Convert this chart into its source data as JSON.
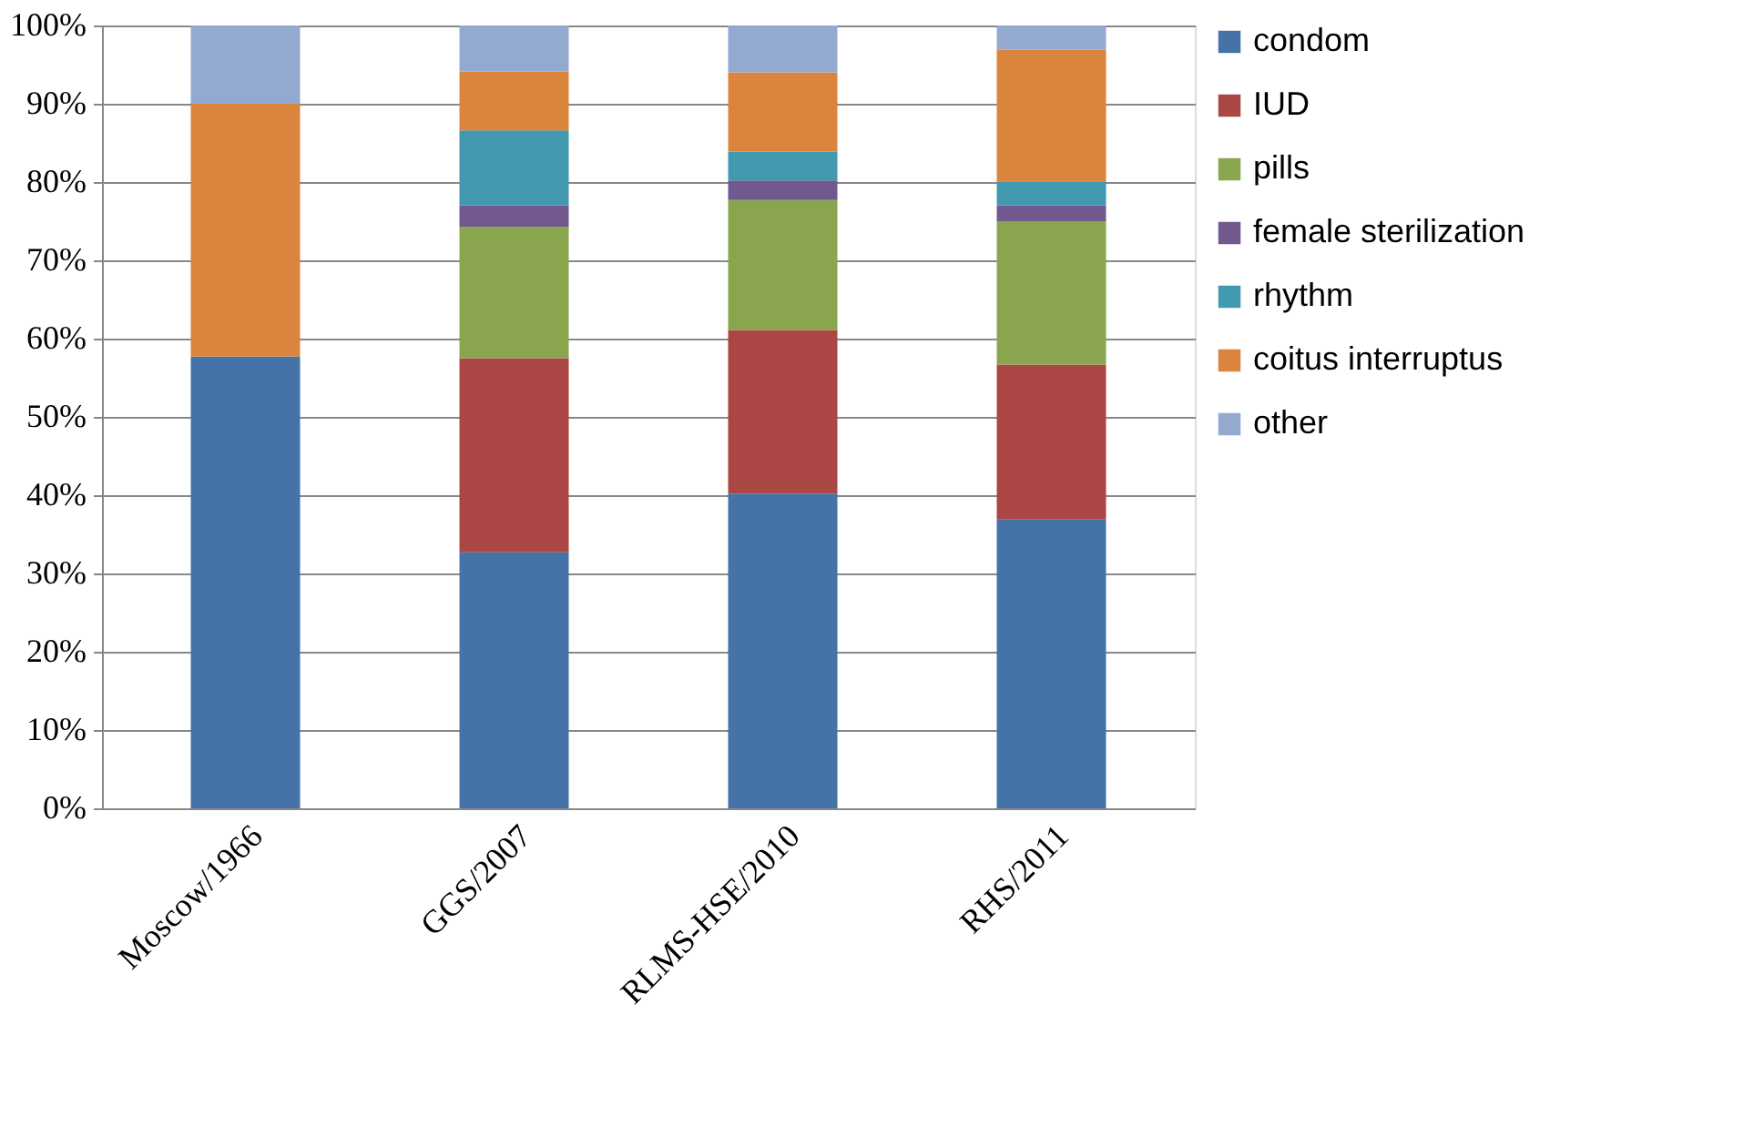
{
  "chart_data": {
    "type": "bar",
    "stacked": true,
    "categories": [
      "Moscow/1966",
      "GGS/2007",
      "RLMS-HSE/2010",
      "RHS/2011"
    ],
    "series": [
      {
        "name": "condom",
        "color": "#4572a7",
        "values": [
          57.7,
          32.7,
          40.2,
          36.9
        ]
      },
      {
        "name": "IUD",
        "color": "#aa4643",
        "values": [
          null,
          24.8,
          20.9,
          19.8
        ]
      },
      {
        "name": "pills",
        "color": "#89a54e",
        "values": [
          null,
          16.8,
          16.6,
          18.3
        ]
      },
      {
        "name": "female sterilization",
        "color": "#71588f",
        "values": [
          null,
          2.7,
          2.5,
          2.0
        ]
      },
      {
        "name": "rhythm",
        "color": "#4198af",
        "values": [
          null,
          9.6,
          3.7,
          3.1
        ]
      },
      {
        "name": "coitus interruptus",
        "color": "#db843d",
        "values": [
          32.3,
          7.5,
          10.1,
          16.8
        ]
      },
      {
        "name": "other",
        "color": "#93a9cf",
        "values": [
          10.0,
          5.9,
          6.0,
          3.1
        ]
      }
    ],
    "ylim": [
      0,
      100
    ],
    "yticks": [
      {
        "value": 0,
        "label": "0%"
      },
      {
        "value": 10,
        "label": "10%"
      },
      {
        "value": 20,
        "label": "20%"
      },
      {
        "value": 30,
        "label": "30%"
      },
      {
        "value": 40,
        "label": "40%"
      },
      {
        "value": 50,
        "label": "50%"
      },
      {
        "value": 60,
        "label": "60%"
      },
      {
        "value": 70,
        "label": "70%"
      },
      {
        "value": 80,
        "label": "80%"
      },
      {
        "value": 90,
        "label": "90%"
      },
      {
        "value": 100,
        "label": "100%"
      }
    ],
    "grid": "y",
    "legend": "right"
  }
}
